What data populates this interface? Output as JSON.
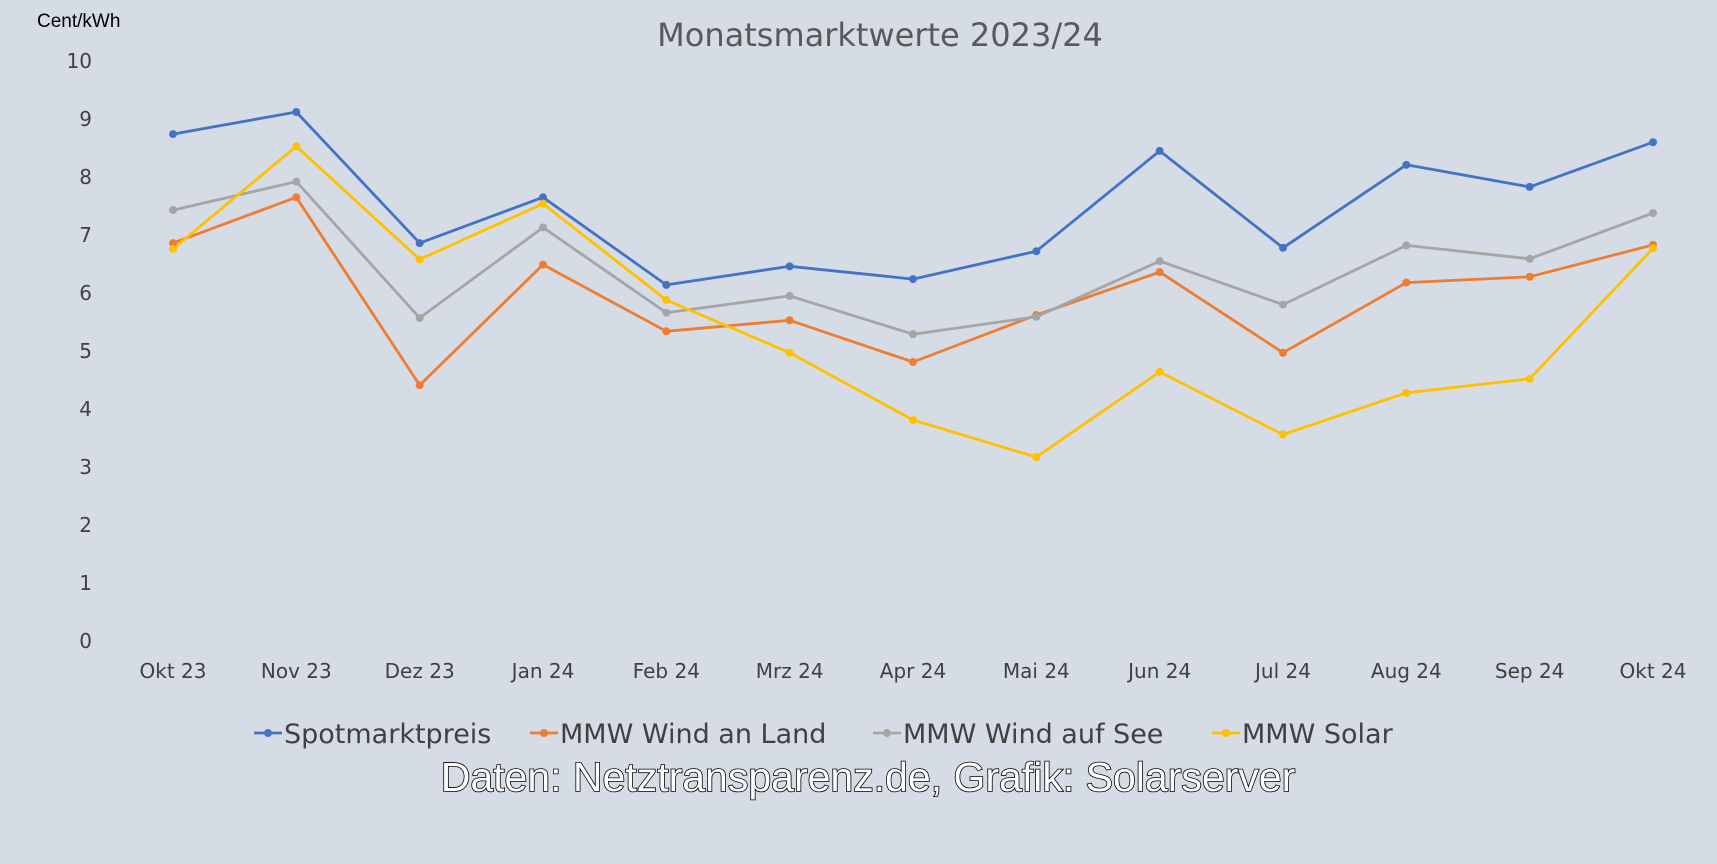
{
  "chart_data": {
    "type": "line",
    "title": "Monatsmarktwerte 2023/24",
    "ylabel": "Cent/kWh",
    "xlabel": "",
    "ylim": [
      0,
      10
    ],
    "yticks": [
      "0",
      "1",
      "2",
      "3",
      "4",
      "5",
      "6",
      "7",
      "8",
      "9",
      "10"
    ],
    "grid": false,
    "legend_position": "bottom",
    "categories": [
      "Okt 23",
      "Nov 23",
      "Dez 23",
      "Jan 24",
      "Feb 24",
      "Mrz 24",
      "Apr 24",
      "Mai 24",
      "Jun 24",
      "Jul 24",
      "Aug 24",
      "Sep 24",
      "Okt 24"
    ],
    "series": [
      {
        "name": "Spotmarktpreis",
        "color": "#4472c4",
        "values": [
          8.74,
          9.12,
          6.86,
          7.65,
          6.14,
          6.46,
          6.24,
          6.72,
          8.45,
          6.78,
          8.21,
          7.83,
          8.6
        ]
      },
      {
        "name": "MMW Wind an Land",
        "color": "#ed7d31",
        "values": [
          6.86,
          7.65,
          4.41,
          6.49,
          5.34,
          5.53,
          4.81,
          5.62,
          6.36,
          4.97,
          6.18,
          6.28,
          6.83
        ]
      },
      {
        "name": "MMW Wind auf See",
        "color": "#a5a5a5",
        "values": [
          7.43,
          7.92,
          5.57,
          7.13,
          5.66,
          5.95,
          5.29,
          5.59,
          6.55,
          5.8,
          6.82,
          6.59,
          7.38
        ]
      },
      {
        "name": "MMW Solar",
        "color": "#ffc000",
        "values": [
          6.76,
          8.53,
          6.58,
          7.54,
          5.88,
          4.97,
          3.81,
          3.17,
          4.64,
          3.56,
          4.28,
          4.52,
          6.77
        ]
      }
    ],
    "credit": "Daten: Netztransparenz.de, Grafik: Solarserver"
  }
}
